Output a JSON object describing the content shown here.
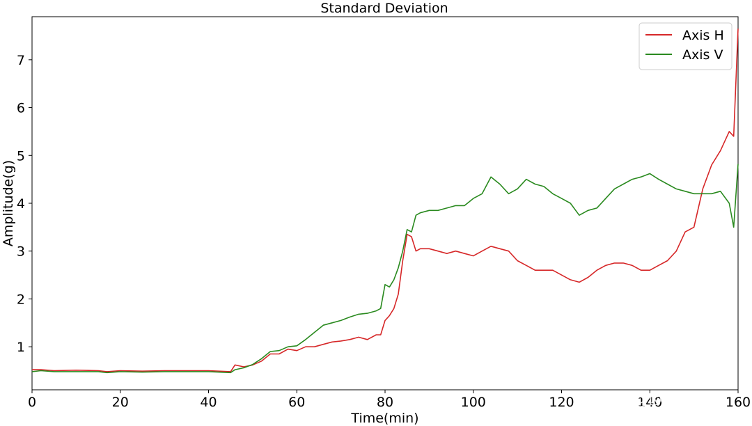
{
  "chart_data": {
    "type": "line",
    "title": "Standard Deviation",
    "xlabel": "Time(min)",
    "ylabel": "Amplitude(g)",
    "xlim": [
      0,
      160
    ],
    "ylim": [
      0.1,
      7.9
    ],
    "x_ticks": [
      0,
      20,
      40,
      60,
      80,
      100,
      120,
      140,
      160
    ],
    "y_ticks": [
      1,
      2,
      3,
      4,
      5,
      6,
      7
    ],
    "grid": false,
    "legend_position": "top-right",
    "series": [
      {
        "name": "Axis H",
        "color": "#d62728",
        "x": [
          0,
          2,
          5,
          10,
          15,
          17,
          20,
          25,
          30,
          35,
          40,
          45,
          46,
          48,
          50,
          52,
          54,
          56,
          58,
          60,
          62,
          64,
          66,
          68,
          70,
          72,
          74,
          76,
          78,
          79,
          80,
          81,
          82,
          83,
          84,
          85,
          86,
          87,
          88,
          90,
          92,
          94,
          96,
          98,
          100,
          102,
          104,
          106,
          108,
          110,
          112,
          114,
          116,
          118,
          120,
          122,
          124,
          126,
          128,
          130,
          132,
          134,
          136,
          138,
          140,
          142,
          144,
          146,
          148,
          150,
          152,
          154,
          156,
          158,
          159,
          160
        ],
        "values": [
          0.52,
          0.52,
          0.5,
          0.51,
          0.5,
          0.48,
          0.5,
          0.49,
          0.5,
          0.5,
          0.5,
          0.48,
          0.62,
          0.58,
          0.62,
          0.7,
          0.85,
          0.85,
          0.95,
          0.92,
          1.0,
          1.0,
          1.05,
          1.1,
          1.12,
          1.15,
          1.2,
          1.15,
          1.25,
          1.25,
          1.55,
          1.65,
          1.8,
          2.1,
          2.8,
          3.35,
          3.3,
          3.0,
          3.05,
          3.05,
          3.0,
          2.95,
          3.0,
          2.95,
          2.9,
          3.0,
          3.1,
          3.05,
          3.0,
          2.8,
          2.7,
          2.6,
          2.6,
          2.6,
          2.5,
          2.4,
          2.35,
          2.45,
          2.6,
          2.7,
          2.75,
          2.75,
          2.7,
          2.6,
          2.6,
          2.7,
          2.8,
          3.0,
          3.4,
          3.5,
          4.3,
          4.8,
          5.1,
          5.5,
          5.4,
          7.65
        ]
      },
      {
        "name": "Axis V",
        "color": "#2a8a1f",
        "x": [
          0,
          2,
          5,
          10,
          15,
          17,
          20,
          25,
          30,
          35,
          40,
          45,
          46,
          48,
          50,
          52,
          54,
          56,
          58,
          60,
          62,
          64,
          66,
          68,
          70,
          72,
          74,
          76,
          78,
          79,
          80,
          81,
          82,
          83,
          84,
          85,
          86,
          87,
          88,
          90,
          92,
          94,
          96,
          98,
          100,
          102,
          104,
          106,
          108,
          110,
          112,
          114,
          116,
          118,
          120,
          122,
          124,
          126,
          128,
          130,
          132,
          134,
          136,
          138,
          140,
          142,
          144,
          146,
          148,
          150,
          152,
          154,
          156,
          158,
          159,
          160
        ],
        "values": [
          0.48,
          0.5,
          0.48,
          0.48,
          0.48,
          0.46,
          0.48,
          0.47,
          0.48,
          0.48,
          0.48,
          0.46,
          0.52,
          0.56,
          0.63,
          0.75,
          0.9,
          0.92,
          1.0,
          1.02,
          1.15,
          1.3,
          1.45,
          1.5,
          1.55,
          1.62,
          1.68,
          1.7,
          1.75,
          1.8,
          2.3,
          2.25,
          2.4,
          2.65,
          3.0,
          3.45,
          3.4,
          3.75,
          3.8,
          3.85,
          3.85,
          3.9,
          3.95,
          3.95,
          4.1,
          4.2,
          4.55,
          4.4,
          4.2,
          4.3,
          4.5,
          4.4,
          4.35,
          4.2,
          4.1,
          4.0,
          3.75,
          3.85,
          3.9,
          4.1,
          4.3,
          4.4,
          4.5,
          4.55,
          4.62,
          4.5,
          4.4,
          4.3,
          4.25,
          4.2,
          4.2,
          4.2,
          4.25,
          4.0,
          3.5,
          4.82
        ]
      }
    ]
  },
  "watermark": {
    "text": "知乎 @欧创科技"
  }
}
